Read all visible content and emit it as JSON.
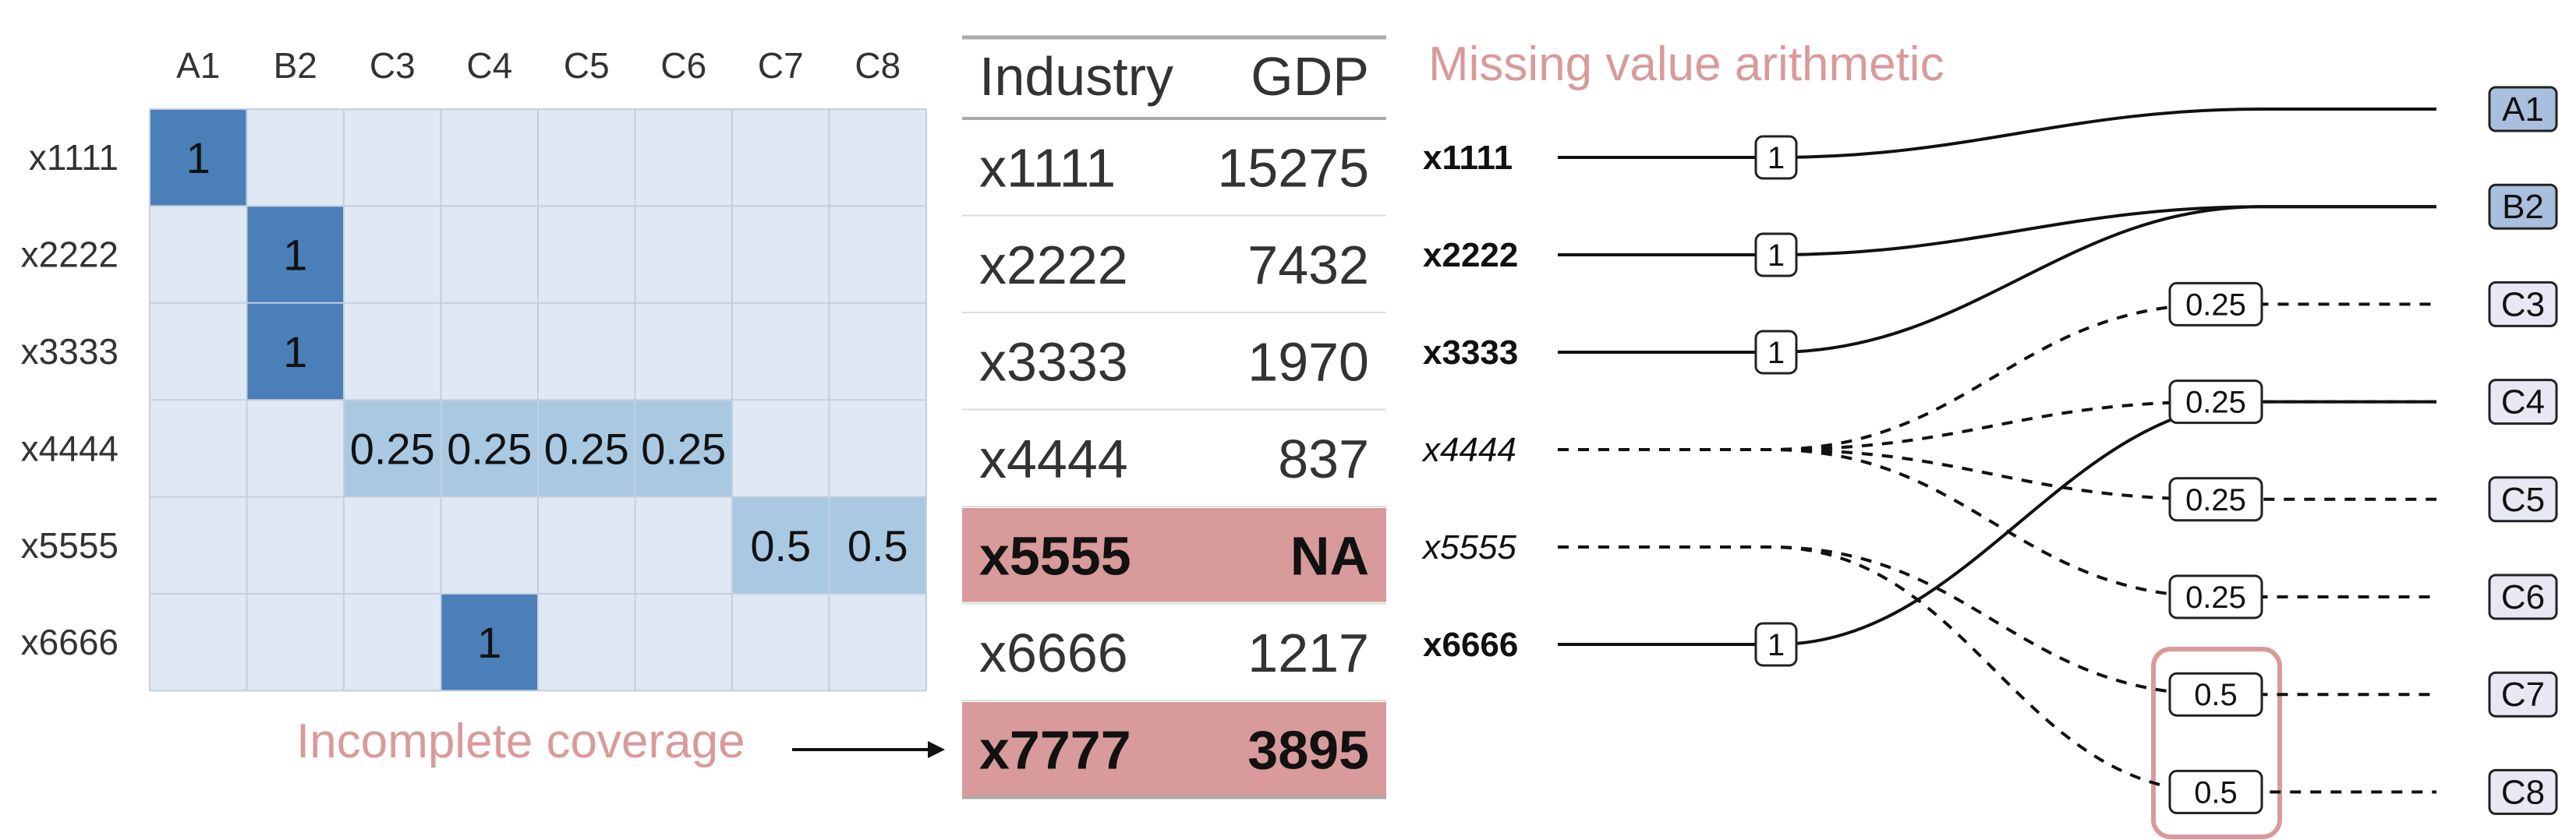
{
  "matrix": {
    "columns": [
      "A1",
      "B2",
      "C3",
      "C4",
      "C5",
      "C6",
      "C7",
      "C8"
    ],
    "rows": [
      {
        "label": "x1111",
        "cells": [
          {
            "col": 0,
            "value": "1",
            "level": "full"
          }
        ]
      },
      {
        "label": "x2222",
        "cells": [
          {
            "col": 1,
            "value": "1",
            "level": "full"
          }
        ]
      },
      {
        "label": "x3333",
        "cells": [
          {
            "col": 1,
            "value": "1",
            "level": "full"
          }
        ]
      },
      {
        "label": "x4444",
        "cells": [
          {
            "col": 2,
            "value": "0.25",
            "level": "partial"
          },
          {
            "col": 3,
            "value": "0.25",
            "level": "partial"
          },
          {
            "col": 4,
            "value": "0.25",
            "level": "partial"
          },
          {
            "col": 5,
            "value": "0.25",
            "level": "partial"
          }
        ]
      },
      {
        "label": "x5555",
        "cells": [
          {
            "col": 6,
            "value": "0.5",
            "level": "partial"
          },
          {
            "col": 7,
            "value": "0.5",
            "level": "partial"
          }
        ]
      },
      {
        "label": "x6666",
        "cells": [
          {
            "col": 3,
            "value": "1",
            "level": "full"
          }
        ]
      }
    ]
  },
  "table": {
    "headers": [
      "Industry",
      "GDP"
    ],
    "rows": [
      {
        "industry": "x1111",
        "gdp": "15275",
        "highlight": false
      },
      {
        "industry": "x2222",
        "gdp": "7432",
        "highlight": false
      },
      {
        "industry": "x3333",
        "gdp": "1970",
        "highlight": false
      },
      {
        "industry": "x4444",
        "gdp": "837",
        "highlight": false
      },
      {
        "industry": "x5555",
        "gdp": "NA",
        "highlight": true
      },
      {
        "industry": "x6666",
        "gdp": "1217",
        "highlight": false
      },
      {
        "industry": "x7777",
        "gdp": "3895",
        "highlight": true
      }
    ]
  },
  "annotations": {
    "incomplete_coverage": "Incomplete coverage",
    "missing_value": "Missing value arithmetic"
  },
  "flow": {
    "sources": [
      {
        "label": "x1111",
        "style": "bold"
      },
      {
        "label": "x2222",
        "style": "bold"
      },
      {
        "label": "x3333",
        "style": "bold"
      },
      {
        "label": "x4444",
        "style": "italic"
      },
      {
        "label": "x5555",
        "style": "italic"
      },
      {
        "label": "x6666",
        "style": "bold"
      }
    ],
    "targets": [
      {
        "label": "A1",
        "kind": "dark"
      },
      {
        "label": "B2",
        "kind": "dark"
      },
      {
        "label": "C3",
        "kind": "light"
      },
      {
        "label": "C4",
        "kind": "light"
      },
      {
        "label": "C5",
        "kind": "light"
      },
      {
        "label": "C6",
        "kind": "light"
      },
      {
        "label": "C7",
        "kind": "light"
      },
      {
        "label": "C8",
        "kind": "light"
      }
    ],
    "links": [
      {
        "source": 0,
        "target": 0,
        "weight": "1",
        "dashed": false
      },
      {
        "source": 1,
        "target": 1,
        "weight": "1",
        "dashed": false
      },
      {
        "source": 2,
        "target": 1,
        "weight": "1",
        "dashed": false
      },
      {
        "source": 3,
        "target": 2,
        "weight": "0.25",
        "dashed": true
      },
      {
        "source": 3,
        "target": 3,
        "weight": "0.25",
        "dashed": true
      },
      {
        "source": 3,
        "target": 4,
        "weight": "0.25",
        "dashed": true
      },
      {
        "source": 3,
        "target": 5,
        "weight": "0.25",
        "dashed": true
      },
      {
        "source": 4,
        "target": 6,
        "weight": "0.5",
        "dashed": true
      },
      {
        "source": 4,
        "target": 7,
        "weight": "0.5",
        "dashed": true
      },
      {
        "source": 5,
        "target": 3,
        "weight": "1",
        "dashed": false
      }
    ]
  },
  "colors": {
    "grid_bg": "#dfe8f3",
    "grid_line": "#c3cfdc",
    "cell_full": "#4a7fb8",
    "cell_partial": "#a9c8e2",
    "highlight_row": "#d89a9a",
    "annotation_pink": "#d99a9a",
    "target_dark": "#a9bfdd",
    "target_light": "#e8e8f3"
  }
}
